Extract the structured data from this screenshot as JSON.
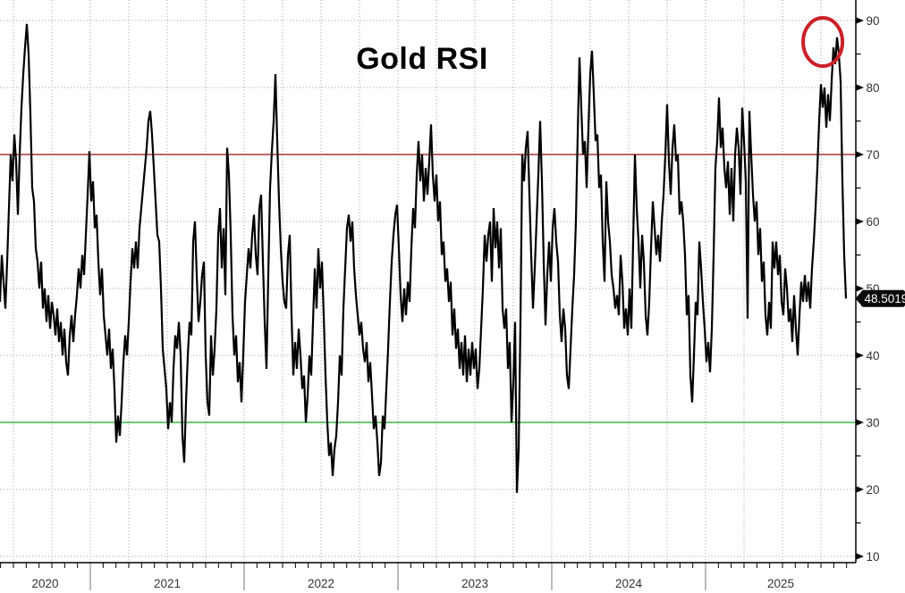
{
  "chart_data": {
    "type": "line",
    "title": "Gold RSI",
    "legend_position": "none",
    "grid": "dotted, horizontal every 10 units, vertical quarterly",
    "x_year_labels": [
      "2020",
      "2021",
      "2022",
      "2023",
      "2024",
      "2025"
    ],
    "y_ticks": [
      10,
      20,
      30,
      40,
      50,
      60,
      70,
      80,
      90
    ],
    "y_minor_tick_step": 5,
    "ylim": [
      9,
      93
    ],
    "overbought_level": 70,
    "oversold_level": 30,
    "last_value": 48.5019,
    "last_value_label": "48.5019",
    "annotation": {
      "type": "circle",
      "year": 2025.762,
      "value": 86.8
    },
    "x_start_year": 2020.413,
    "x_step_years": 0.0116279,
    "values": [
      48,
      55,
      51,
      47,
      54,
      62,
      70,
      66,
      73,
      69,
      61,
      70,
      77,
      82,
      86,
      89.5,
      85,
      76,
      65,
      63,
      56,
      54,
      50,
      54,
      47,
      50,
      45,
      49,
      44,
      48,
      46,
      43,
      47,
      42,
      45,
      40,
      44,
      39,
      37,
      43,
      46,
      42,
      46,
      49,
      53,
      50,
      55,
      52,
      58,
      64,
      70.5,
      63,
      66,
      59,
      61,
      54,
      49,
      53,
      46,
      43,
      40,
      44,
      38,
      41,
      35,
      27,
      31,
      28,
      33,
      39,
      43,
      40,
      45,
      51,
      56,
      53,
      57,
      53,
      59,
      62,
      65,
      68,
      71,
      75,
      76.5,
      73,
      68,
      63,
      58,
      57,
      50,
      41,
      38,
      35,
      29,
      33,
      30,
      38,
      43,
      41,
      45,
      40,
      28,
      24,
      33,
      40,
      45,
      43,
      57,
      60,
      52,
      45,
      48,
      52,
      54,
      40,
      33,
      31,
      43,
      37,
      41,
      47,
      58,
      62,
      53,
      59,
      49,
      71,
      67,
      58,
      46,
      40,
      43,
      36,
      39,
      33,
      40,
      48,
      52,
      56,
      53,
      58,
      61,
      55,
      52,
      62,
      64,
      54,
      45,
      38,
      52,
      65,
      70.5,
      75,
      82,
      72,
      63,
      56,
      51,
      48,
      47,
      55,
      58,
      46,
      37,
      42,
      38,
      44,
      40,
      35,
      37,
      30,
      34,
      40,
      37,
      45,
      53,
      47,
      56,
      50,
      54,
      46,
      37,
      30,
      25,
      27,
      22,
      26,
      28,
      33,
      40,
      37,
      47,
      53,
      59,
      61,
      57,
      60,
      53,
      49,
      46,
      43,
      45,
      41,
      39,
      42,
      36,
      39,
      34,
      29,
      31,
      27,
      22,
      24,
      31,
      29,
      35,
      41,
      48,
      54,
      58,
      61,
      62.5,
      56,
      49,
      45,
      50,
      46,
      51,
      48,
      56,
      62,
      59,
      67,
      72,
      66,
      70,
      63,
      68,
      64,
      69,
      74.5,
      67,
      63,
      67,
      60,
      63,
      55,
      57,
      51,
      53,
      48,
      51,
      43,
      47,
      41,
      44,
      38,
      42,
      37,
      43,
      36,
      41,
      37,
      42,
      38,
      41,
      35,
      38,
      44,
      50,
      58,
      54,
      58,
      60,
      51,
      62,
      56,
      60,
      53,
      59,
      47,
      44,
      47,
      38,
      42,
      30,
      36,
      45,
      19.5,
      26,
      45,
      70,
      66,
      71,
      73.5,
      64,
      55,
      47,
      53,
      60,
      67,
      75,
      66,
      54,
      44.5,
      52,
      57,
      51,
      59,
      62,
      57,
      54,
      46,
      42,
      47,
      44,
      37,
      35,
      41,
      47,
      52,
      60,
      73,
      84.5,
      77,
      70,
      72,
      65,
      74,
      82,
      85.5,
      79,
      72,
      73,
      65,
      67,
      57,
      51,
      66,
      60,
      57,
      52,
      50,
      47,
      49,
      46,
      55,
      51,
      44,
      47,
      43,
      50,
      44,
      57,
      70,
      62,
      57,
      50,
      58,
      54,
      46,
      43,
      48,
      56,
      63,
      59,
      55,
      58,
      54,
      60,
      64,
      70,
      77.5,
      69,
      64,
      71,
      74.5,
      69,
      70,
      61,
      63,
      60,
      55,
      46,
      49,
      37,
      33,
      40,
      48,
      46,
      57,
      53,
      48,
      44,
      39,
      42,
      37.5,
      44,
      55,
      68,
      72,
      78.5,
      71,
      74,
      68,
      65,
      69,
      61,
      68,
      60,
      70,
      74,
      71,
      64,
      77,
      72,
      66,
      45.5,
      76.5,
      70,
      64,
      60,
      63,
      55,
      59,
      51,
      54,
      46,
      43,
      48,
      44,
      57,
      53,
      57,
      52,
      55,
      48,
      46,
      53,
      50,
      45,
      47,
      42,
      49,
      44,
      40,
      46,
      51,
      48,
      52,
      48,
      51,
      47,
      53,
      57,
      62,
      68,
      75,
      80.5,
      77,
      80,
      74,
      79,
      75,
      81,
      86,
      83.5,
      87.5,
      85,
      81,
      66,
      55,
      48.5
    ]
  },
  "colors": {
    "line": "#000000",
    "overbought": "#aa3333",
    "oversold": "#3cb54a",
    "grid": "#999999",
    "axis": "#000000",
    "tick_label": "#333333",
    "badge_bg": "#0a0a0a",
    "badge_text": "#ffffff",
    "annotation": "#cc2029"
  }
}
